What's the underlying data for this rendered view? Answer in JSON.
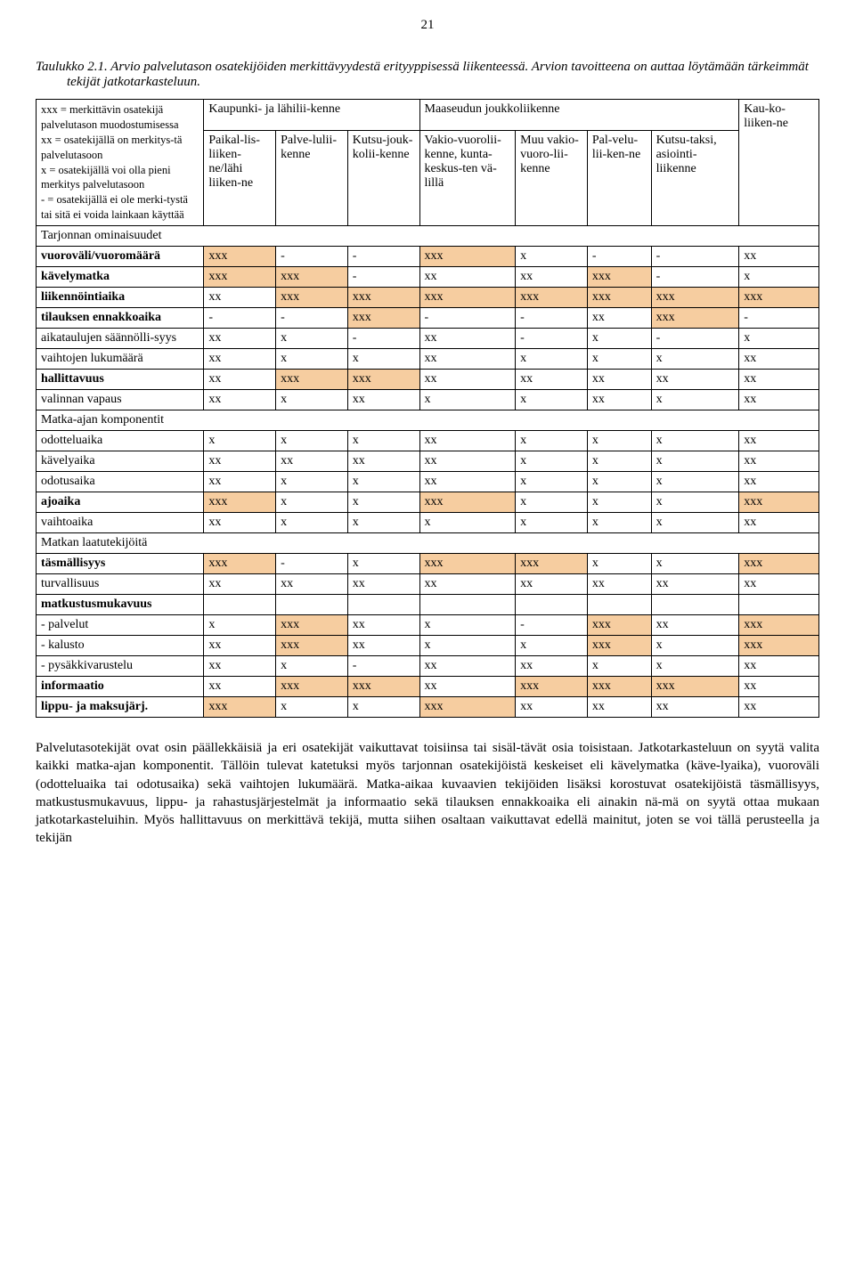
{
  "page_number": "21",
  "caption": "Taulukko 2.1. Arvio palvelutason osatekijöiden merkittävyydestä erityyppisessä liikenteessä. Arvion tavoitteena on auttaa löytämään tärkeimmät tekijät jatkotarkasteluun.",
  "legend": "xxx = merkittävin osatekijä palvelutason muodostumisessa\nxx = osatekijällä on merkitys-tä palvelutasoon\nx = osatekijällä voi olla pieni merkitys palvelutasoon\n- = osatekijällä ei ole merki-tystä tai sitä ei voida lainkaan käyttää",
  "headers": {
    "group_city": "Kaupunki- ja lähilii-kenne",
    "group_rural": "Maaseudun joukkoliikenne",
    "group_long": "Kau-ko-liiken-ne",
    "c1": "Paikal-lis-liiken-ne/lähi liiken-ne",
    "c2": "Palve-lulii-kenne",
    "c3": "Kutsu-jouk-kolii-kenne",
    "c4": "Vakio-vuorolii-kenne, kunta-keskus-ten vä-lillä",
    "c5": "Muu vakio-vuoro-lii-kenne",
    "c6": "Pal-velu-lii-ken-ne",
    "c7": "Kutsu-taksi, asiointi-liikenne"
  },
  "sections": {
    "s1": "Tarjonnan ominaisuudet",
    "s2": "Matka-ajan komponentit",
    "s3": "Matkan laatutekijöitä"
  },
  "rows": {
    "r1": {
      "label": "vuoroväli/vuoromäärä",
      "bold": true,
      "cells": [
        "xxx",
        "-",
        "-",
        "xxx",
        "x",
        "-",
        "-",
        "xx"
      ]
    },
    "r2": {
      "label": "kävelymatka",
      "bold": true,
      "cells": [
        "xxx",
        "xxx",
        "-",
        "xx",
        "xx",
        "xxx",
        "-",
        "x"
      ]
    },
    "r3": {
      "label": "liikennöintiaika",
      "bold": true,
      "cells": [
        "xx",
        "xxx",
        "xxx",
        "xxx",
        "xxx",
        "xxx",
        "xxx",
        "xxx"
      ]
    },
    "r4": {
      "label": "tilauksen ennakkoaika",
      "bold": true,
      "cells": [
        "-",
        "-",
        "xxx",
        "-",
        "-",
        "xx",
        "xxx",
        "-"
      ]
    },
    "r5": {
      "label": "aikataulujen säännölli-syys",
      "bold": false,
      "cells": [
        "xx",
        "x",
        "-",
        "xx",
        "-",
        "x",
        "-",
        "x"
      ]
    },
    "r6": {
      "label": "vaihtojen lukumäärä",
      "bold": false,
      "cells": [
        "xx",
        "x",
        "x",
        "xx",
        "x",
        "x",
        "x",
        "xx"
      ]
    },
    "r7": {
      "label": "hallittavuus",
      "bold": true,
      "cells": [
        "xx",
        "xxx",
        "xxx",
        "xx",
        "xx",
        "xx",
        "xx",
        "xx"
      ]
    },
    "r8": {
      "label": "valinnan vapaus",
      "bold": false,
      "cells": [
        "xx",
        "x",
        "xx",
        "x",
        "x",
        "xx",
        "x",
        "xx"
      ]
    },
    "r9": {
      "label": "odotteluaika",
      "bold": false,
      "cells": [
        "x",
        "x",
        "x",
        "xx",
        "x",
        "x",
        "x",
        "xx"
      ]
    },
    "r10": {
      "label": "kävelyaika",
      "bold": false,
      "cells": [
        "xx",
        "xx",
        "xx",
        "xx",
        "x",
        "x",
        "x",
        "xx"
      ]
    },
    "r11": {
      "label": "odotusaika",
      "bold": false,
      "cells": [
        "xx",
        "x",
        "x",
        "xx",
        "x",
        "x",
        "x",
        "xx"
      ]
    },
    "r12": {
      "label": "ajoaika",
      "bold": true,
      "cells": [
        "xxx",
        "x",
        "x",
        "xxx",
        "x",
        "x",
        "x",
        "xxx"
      ]
    },
    "r13": {
      "label": "vaihtoaika",
      "bold": false,
      "cells": [
        "xx",
        "x",
        "x",
        "x",
        "x",
        "x",
        "x",
        "xx"
      ]
    },
    "r14": {
      "label": "täsmällisyys",
      "bold": true,
      "cells": [
        "xxx",
        "-",
        "x",
        "xxx",
        "xxx",
        "x",
        "x",
        "xxx"
      ]
    },
    "r15": {
      "label": "turvallisuus",
      "bold": false,
      "cells": [
        "xx",
        "xx",
        "xx",
        "xx",
        "xx",
        "xx",
        "xx",
        "xx"
      ]
    },
    "r16": {
      "label": "matkustusmukavuus",
      "bold": true,
      "cells": [
        "",
        "",
        "",
        "",
        "",
        "",
        "",
        ""
      ]
    },
    "r17": {
      "label": "- palvelut",
      "bold": false,
      "cells": [
        "x",
        "xxx",
        "xx",
        "x",
        "-",
        "xxx",
        "xx",
        "xxx"
      ]
    },
    "r18": {
      "label": "- kalusto",
      "bold": false,
      "cells": [
        "xx",
        "xxx",
        "xx",
        "x",
        "x",
        "xxx",
        "x",
        "xxx"
      ]
    },
    "r19": {
      "label": "- pysäkkivarustelu",
      "bold": false,
      "cells": [
        "xx",
        "x",
        "-",
        "xx",
        "xx",
        "x",
        "x",
        "xx"
      ]
    },
    "r20": {
      "label": "informaatio",
      "bold": true,
      "cells": [
        "xx",
        "xxx",
        "xxx",
        "xx",
        "xxx",
        "xxx",
        "xxx",
        "xx"
      ]
    },
    "r21": {
      "label": "lippu- ja maksujärj.",
      "bold": true,
      "cells": [
        "xxx",
        "x",
        "x",
        "xxx",
        "xx",
        "xx",
        "xx",
        "xx"
      ]
    }
  },
  "colors": {
    "highlight": "#f6cda0",
    "header_bg": "#ffffff"
  },
  "body_text": "Palvelutasotekijät ovat osin päällekkäisiä ja eri osatekijät vaikuttavat toisiinsa tai sisäl-tävät osia toisistaan. Jatkotarkasteluun on syytä valita kaikki matka-ajan komponentit. Tällöin tulevat katetuksi myös tarjonnan osatekijöistä keskeiset eli kävelymatka (käve-lyaika), vuoroväli (odotteluaika tai odotusaika) sekä vaihtojen lukumäärä.  Matka-aikaa kuvaavien tekijöiden lisäksi korostuvat osatekijöistä täsmällisyys, matkustusmukavuus, lippu- ja rahastusjärjestelmät ja informaatio sekä tilauksen ennakkoaika eli ainakin nä-mä on syytä ottaa mukaan jatkotarkasteluihin. Myös hallittavuus on merkittävä tekijä, mutta siihen osaltaan vaikuttavat edellä mainitut, joten se voi tällä perusteella ja tekijän"
}
